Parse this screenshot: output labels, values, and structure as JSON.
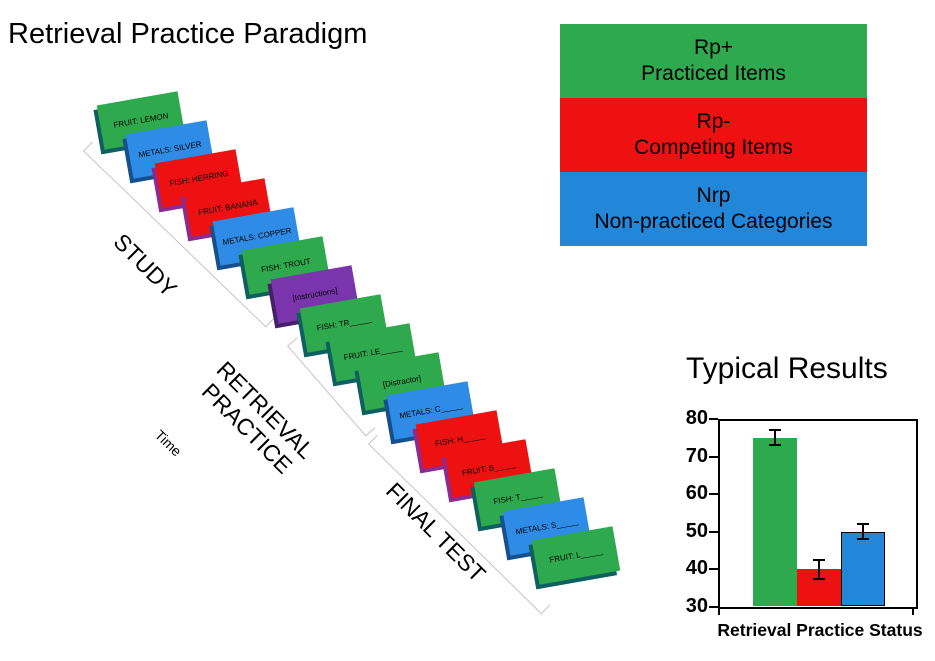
{
  "title": "Retrieval Practice Paradigm",
  "timeline": {
    "time_label": "Time",
    "phases": [
      {
        "label": "STUDY"
      },
      {
        "label": "RETRIEVAL PRACTICE"
      },
      {
        "label": "FINAL TEST"
      }
    ],
    "cards": [
      {
        "text": "FRUIT: LEMON",
        "color": "green"
      },
      {
        "text": "METALS: SILVER",
        "color": "blue"
      },
      {
        "text": "FISH: HERRING",
        "color": "red"
      },
      {
        "text": "FRUIT: BANANA",
        "color": "red"
      },
      {
        "text": "METALS: COPPER",
        "color": "blue"
      },
      {
        "text": "FISH: TROUT",
        "color": "green"
      },
      {
        "text": "[Instructions]",
        "color": "purple"
      },
      {
        "text": "FISH: TR_____",
        "color": "green"
      },
      {
        "text": "FRUIT: LE_____",
        "color": "green"
      },
      {
        "text": "[Distractor]",
        "color": "green"
      },
      {
        "text": "METALS: C_____",
        "color": "blue"
      },
      {
        "text": "FISH: H_____",
        "color": "red"
      },
      {
        "text": "FRUIT: B_____",
        "color": "red"
      },
      {
        "text": "FISH: T_____",
        "color": "green"
      },
      {
        "text": "METALS: S_____",
        "color": "blue"
      },
      {
        "text": "FRUIT: L_____",
        "color": "green"
      }
    ]
  },
  "legend": {
    "items": [
      {
        "code": "Rp+",
        "label": "Practiced Items",
        "color": "green"
      },
      {
        "code": "Rp-",
        "label": "Competing Items",
        "color": "red"
      },
      {
        "code": "Nrp",
        "label": "Non-practiced Categories",
        "color": "blue"
      }
    ]
  },
  "results": {
    "title": "Typical Results",
    "xlabel": "Retrieval Practice Status"
  },
  "chart_data": {
    "type": "bar",
    "title": "Typical Results",
    "categories": [
      "Rp+",
      "Rp-",
      "Nrp"
    ],
    "values": [
      75,
      40,
      50
    ],
    "errors": [
      2,
      2.5,
      2
    ],
    "bar_colors": [
      "#2ea94e",
      "#ee1111",
      "#2287d9"
    ],
    "xlabel": "Retrieval Practice Status",
    "ylabel": "",
    "ylim": [
      30,
      80
    ],
    "yticks": [
      30,
      40,
      50,
      60,
      70,
      80
    ],
    "grid": false,
    "legend_position": "none"
  },
  "colors": {
    "green": "#2ea94e",
    "red": "#ee1111",
    "blue": "#2287d9",
    "blue_card": "#2e8ce6",
    "purple": "#7b35ac",
    "green_edge": "#0d5f60",
    "red_edge": "#8c2a8f",
    "blue_edge": "#15508c",
    "purple_edge": "#471e68",
    "axis_gray": "#c5c5c5"
  }
}
